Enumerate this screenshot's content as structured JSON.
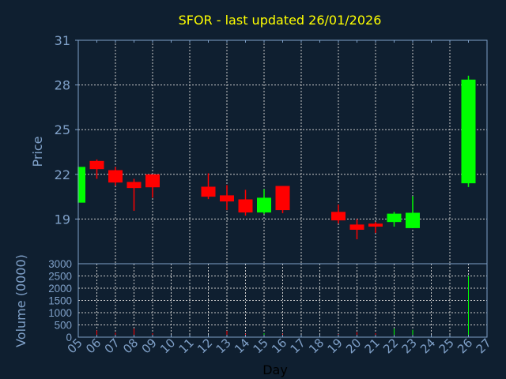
{
  "chart_data": {
    "type": "candlestick",
    "title": "SFOR - last updated 26/01/2026",
    "xlabel": "Day",
    "ylabel": "Price",
    "volume_ylabel": "Volume (0000)",
    "x_ticks": [
      "05",
      "06",
      "07",
      "08",
      "09",
      "10",
      "11",
      "12",
      "13",
      "14",
      "15",
      "16",
      "17",
      "18",
      "19",
      "20",
      "21",
      "22",
      "23",
      "24",
      "25",
      "26",
      "27"
    ],
    "y_ticks": [
      19,
      22,
      25,
      28,
      31
    ],
    "ylim": [
      16,
      31
    ],
    "volume_ticks": [
      0,
      500,
      1000,
      1500,
      2000,
      2500,
      3000
    ],
    "volume_ylim": [
      0,
      3000
    ],
    "grid": true,
    "colors": {
      "up": "#00ff00",
      "down": "#ff0000",
      "title": "#ffff00",
      "axis": "#7fa0c8",
      "background": "#0f1f30"
    },
    "candles": [
      {
        "day": 5,
        "open": 20.1,
        "high": 22.5,
        "low": 20.1,
        "close": 22.5,
        "volume": 0
      },
      {
        "day": 6,
        "open": 22.9,
        "high": 23.0,
        "low": 21.7,
        "close": 22.35,
        "volume": 280
      },
      {
        "day": 7,
        "open": 22.28,
        "high": 22.5,
        "low": 21.24,
        "close": 21.45,
        "volume": 180
      },
      {
        "day": 8,
        "open": 21.49,
        "high": 21.7,
        "low": 19.55,
        "close": 21.08,
        "volume": 350
      },
      {
        "day": 9,
        "open": 22.0,
        "high": 22.0,
        "low": 20.43,
        "close": 21.13,
        "volume": 160
      },
      {
        "day": 12,
        "open": 21.17,
        "high": 22.07,
        "low": 20.34,
        "close": 20.5,
        "volume": 60
      },
      {
        "day": 13,
        "open": 20.59,
        "high": 21.28,
        "low": 19.6,
        "close": 20.18,
        "volume": 260
      },
      {
        "day": 14,
        "open": 20.32,
        "high": 20.96,
        "low": 19.23,
        "close": 19.44,
        "volume": 140
      },
      {
        "day": 15,
        "open": 19.44,
        "high": 21.0,
        "low": 19.34,
        "close": 20.43,
        "volume": 160
      },
      {
        "day": 16,
        "open": 21.22,
        "high": 21.22,
        "low": 19.39,
        "close": 19.6,
        "volume": 140
      },
      {
        "day": 19,
        "open": 19.48,
        "high": 19.97,
        "low": 18.7,
        "close": 18.91,
        "volume": 120
      },
      {
        "day": 20,
        "open": 18.63,
        "high": 18.99,
        "low": 17.64,
        "close": 18.28,
        "volume": 200
      },
      {
        "day": 21,
        "open": 18.69,
        "high": 18.81,
        "low": 18.07,
        "close": 18.49,
        "volume": 160
      },
      {
        "day": 22,
        "open": 18.8,
        "high": 19.48,
        "low": 18.49,
        "close": 19.36,
        "volume": 350
      },
      {
        "day": 23,
        "open": 18.39,
        "high": 20.53,
        "low": 18.39,
        "close": 19.42,
        "volume": 300
      },
      {
        "day": 26,
        "open": 21.4,
        "high": 28.62,
        "low": 21.15,
        "close": 28.36,
        "volume": 2500
      }
    ]
  }
}
